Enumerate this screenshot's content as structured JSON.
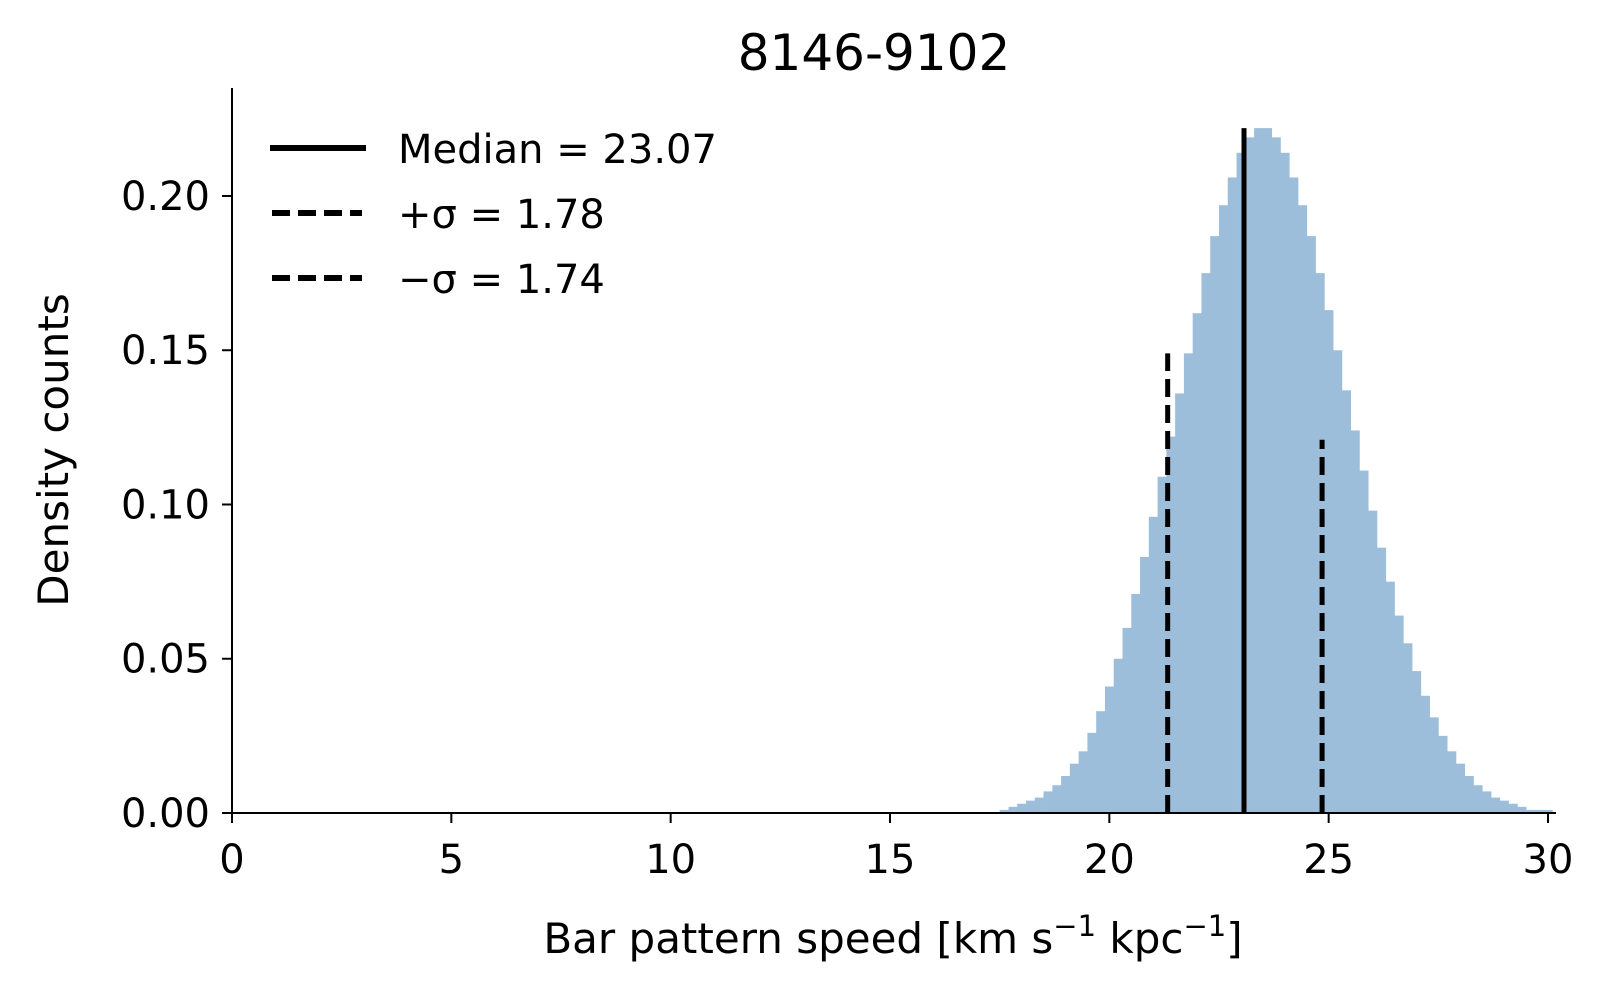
{
  "chart_data": {
    "type": "bar",
    "title": "8146-9102",
    "xlabel": "Bar pattern speed [km s",
    "xlabel_exp1": "−1",
    "xlabel_mid": " kpc",
    "xlabel_exp2": "−1",
    "xlabel_end": "]",
    "ylabel": "Density counts",
    "xlim": [
      0,
      30
    ],
    "ylim": [
      0,
      0.235
    ],
    "xticks": [
      "0",
      "5",
      "10",
      "15",
      "20",
      "25",
      "30"
    ],
    "yticks": [
      "0.00",
      "0.05",
      "0.10",
      "0.15",
      "0.20"
    ],
    "grid": false,
    "legend_position": "top-left",
    "legend": [
      {
        "style": "solid",
        "label": "Median = 23.07"
      },
      {
        "style": "dashed",
        "label": "+σ = 1.78"
      },
      {
        "style": "dashed",
        "label": "−σ = 1.74"
      }
    ],
    "histogram": {
      "color": "#9dbedb",
      "bin_start": 17.5,
      "bin_width": 0.2,
      "values": [
        0.001,
        0.002,
        0.003,
        0.004,
        0.005,
        0.007,
        0.009,
        0.012,
        0.016,
        0.02,
        0.026,
        0.033,
        0.041,
        0.05,
        0.06,
        0.071,
        0.083,
        0.096,
        0.109,
        0.122,
        0.136,
        0.149,
        0.162,
        0.175,
        0.187,
        0.197,
        0.206,
        0.214,
        0.219,
        0.222,
        0.222,
        0.219,
        0.214,
        0.206,
        0.197,
        0.187,
        0.175,
        0.163,
        0.15,
        0.137,
        0.124,
        0.111,
        0.098,
        0.086,
        0.075,
        0.064,
        0.055,
        0.046,
        0.038,
        0.031,
        0.025,
        0.02,
        0.016,
        0.012,
        0.009,
        0.007,
        0.005,
        0.004,
        0.003,
        0.002,
        0.001,
        0.001,
        0.001
      ]
    },
    "vlines": [
      {
        "name": "median-line",
        "x": 23.07,
        "height": 0.222,
        "style": "solid"
      },
      {
        "name": "minus-sigma-line",
        "x": 21.33,
        "height": 0.149,
        "style": "dashed"
      },
      {
        "name": "plus-sigma-line",
        "x": 24.85,
        "height": 0.121,
        "style": "dashed"
      }
    ]
  }
}
